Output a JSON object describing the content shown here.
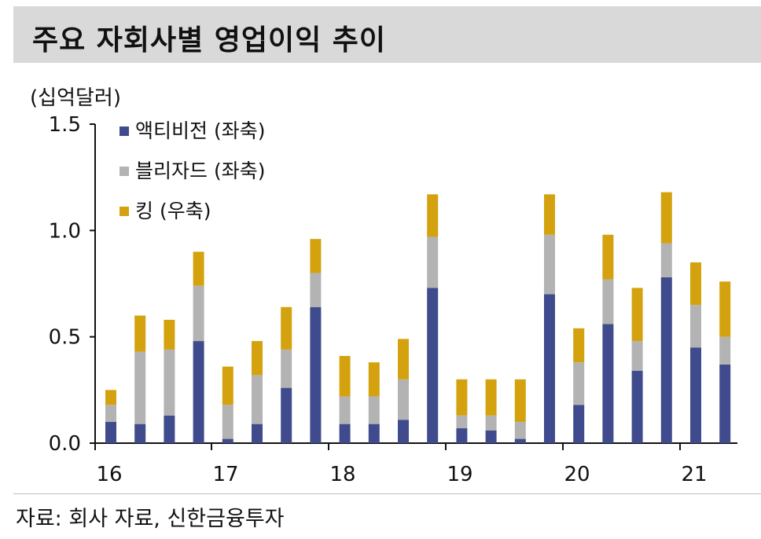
{
  "header": {
    "title": "주요 자회사별 영업이익 추이"
  },
  "unit_label": "(십억달러)",
  "source": "자료: 회사 자료, 신한금융투자",
  "chart_data": {
    "type": "bar",
    "stacked": true,
    "title": "주요 자회사별 영업이익 추이",
    "ylabel": "(십억달러)",
    "ylim": [
      0,
      1.5
    ],
    "yticks": [
      "0.0",
      "0.5",
      "1.0",
      "1.5"
    ],
    "x_year_labels": [
      "16",
      "17",
      "18",
      "19",
      "20",
      "21"
    ],
    "legend_position": "top-left",
    "series": [
      {
        "name": "액티비전 (좌축)",
        "color": "#3f4b8c",
        "values": [
          0.1,
          0.09,
          0.13,
          0.48,
          0.02,
          0.09,
          0.26,
          0.64,
          0.09,
          0.09,
          0.11,
          0.73,
          0.07,
          0.06,
          0.02,
          0.7,
          0.18,
          0.56,
          0.34,
          0.78,
          0.45,
          0.37
        ]
      },
      {
        "name": "블리자드 (좌축)",
        "color": "#b3b3b3",
        "values": [
          0.08,
          0.34,
          0.31,
          0.26,
          0.16,
          0.23,
          0.18,
          0.16,
          0.13,
          0.13,
          0.19,
          0.24,
          0.06,
          0.07,
          0.08,
          0.28,
          0.2,
          0.21,
          0.14,
          0.16,
          0.2,
          0.13
        ]
      },
      {
        "name": "킹 (우축)",
        "color": "#d4a20e",
        "values": [
          0.07,
          0.17,
          0.14,
          0.16,
          0.18,
          0.16,
          0.2,
          0.16,
          0.19,
          0.16,
          0.19,
          0.2,
          0.17,
          0.17,
          0.2,
          0.19,
          0.16,
          0.21,
          0.25,
          0.24,
          0.2,
          0.26
        ]
      }
    ],
    "grid": false
  }
}
